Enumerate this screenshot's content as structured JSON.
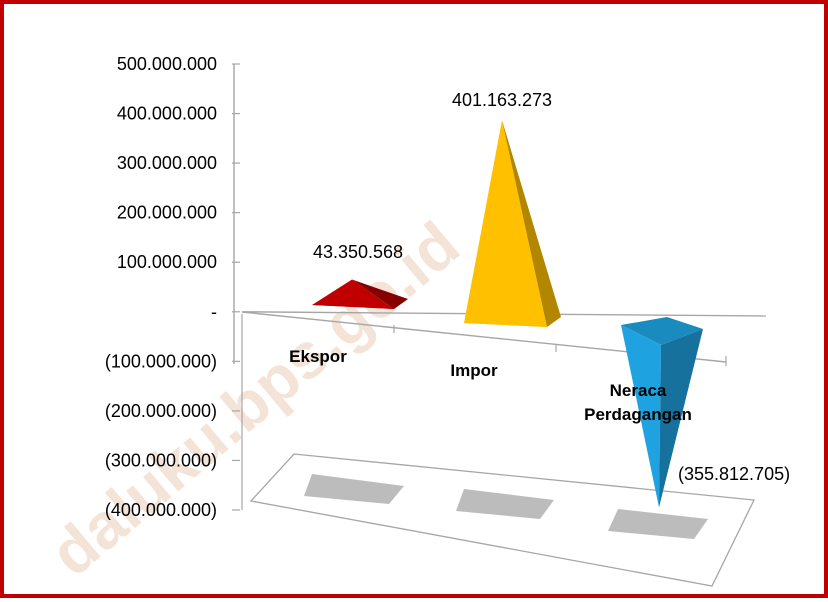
{
  "colors": {
    "border": "#c00000",
    "axis": "#a6a6a6",
    "ekspor": "#c00000",
    "impor": "#ffc000",
    "neraca": "#1fa3e0",
    "shadow": "#a6a6a6"
  },
  "watermark": "daluku.bps.go.id",
  "chart_data": {
    "type": "bar",
    "style": "3d-pyramid",
    "categories": [
      "Ekspor",
      "Impor",
      "Neraca Perdagangan"
    ],
    "category_labels": [
      [
        "Ekspor"
      ],
      [
        "Impor"
      ],
      [
        "Neraca",
        "Perdagangan"
      ]
    ],
    "values": [
      43350568,
      401163273,
      -355812705
    ],
    "data_labels": [
      "43.350.568",
      "401.163.273",
      "(355.812.705)"
    ],
    "ylim": [
      -400000000,
      500000000
    ],
    "yticks": [
      {
        "value": 500000000,
        "label": "500.000.000"
      },
      {
        "value": 400000000,
        "label": "400.000.000"
      },
      {
        "value": 300000000,
        "label": "300.000.000"
      },
      {
        "value": 200000000,
        "label": "200.000.000"
      },
      {
        "value": 100000000,
        "label": "100.000.000"
      },
      {
        "value": 0,
        "label": "-"
      },
      {
        "value": -100000000,
        "label": "(100.000.000)"
      },
      {
        "value": -200000000,
        "label": "(200.000.000)"
      },
      {
        "value": -300000000,
        "label": "(300.000.000)"
      },
      {
        "value": -400000000,
        "label": "(400.000.000)"
      }
    ],
    "title": "",
    "xlabel": "",
    "ylabel": "",
    "grid": false,
    "legend": "none"
  }
}
